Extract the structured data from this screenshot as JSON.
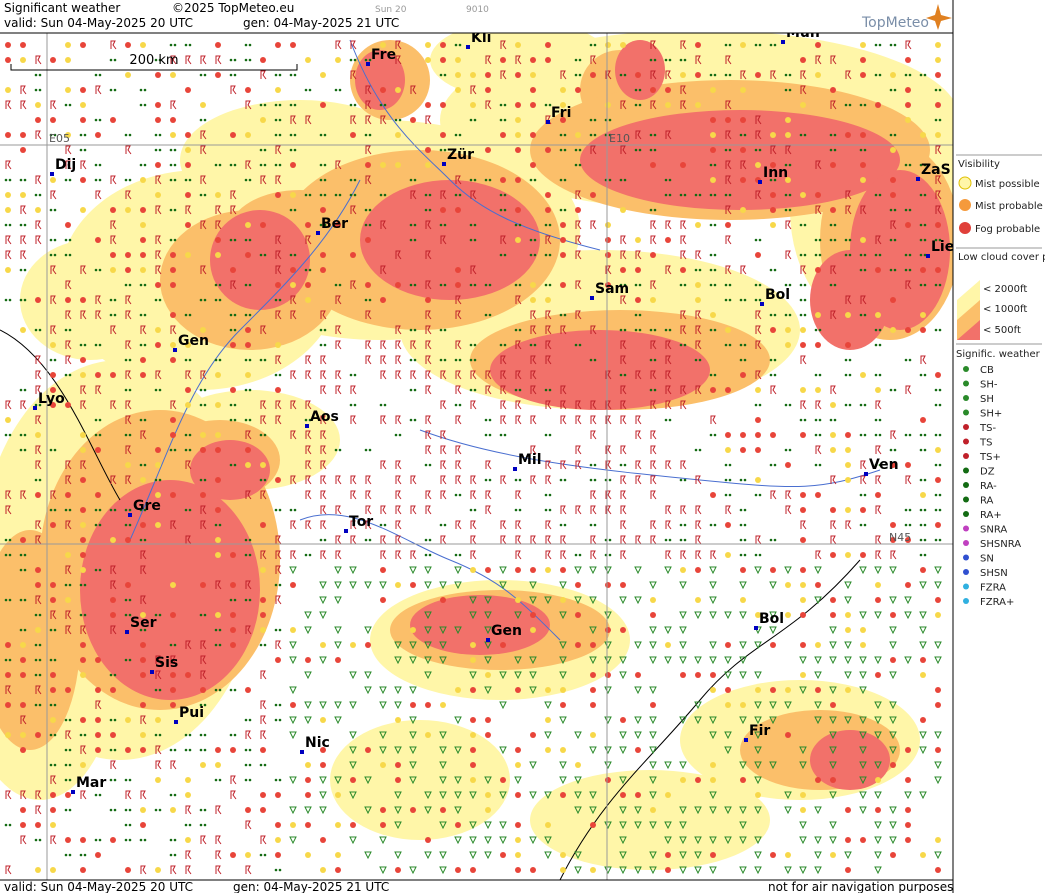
{
  "header": {
    "title": "Significant weather",
    "copyright": "©2025 TopMeteo.eu",
    "faint_left": "Sun 20",
    "faint_right": "9010",
    "valid": "valid:  Sun  04-May-2025  20 UTC",
    "gen": "gen: 04-May-2025 21 UTC",
    "brand": "TopMeteo"
  },
  "map": {
    "scale": "200 km",
    "grid_labels": [
      "E05",
      "E10",
      "N45"
    ],
    "cities": [
      "Kli",
      "Mün",
      "Fre",
      "Fri",
      "Dij",
      "Zür",
      "Inn",
      "ZaS",
      "Ber",
      "Lie",
      "Sam",
      "Bol",
      "Gen",
      "Lyo",
      "Aos",
      "Mil",
      "Ven",
      "Gre",
      "Tor",
      "Ser",
      "Gen",
      "Bol",
      "Sis",
      "Pui",
      "Nic",
      "Fir",
      "Mar"
    ]
  },
  "legend": {
    "visibility": {
      "title": "Visibility",
      "items": [
        "Mist possible",
        "Mist probable",
        "Fog probable"
      ]
    },
    "low_cloud": {
      "title": "Low cloud cover probable",
      "items": [
        "< 2000ft",
        "< 1000ft",
        "<  500ft"
      ]
    },
    "weather": {
      "title": "Signific. weather",
      "items": [
        "CB",
        "SH-",
        "SH",
        "SH+",
        "TS-",
        "TS",
        "TS+",
        "DZ",
        "RA-",
        "RA",
        "RA+",
        "SNRA",
        "SHSNRA",
        "SN",
        "SHSN",
        "FZRA",
        "FZRA+"
      ]
    }
  },
  "footer": {
    "valid": "valid:  Sun  04-May-2025  20 UTC",
    "gen": "gen: 04-May-2025 21 UTC",
    "note": "not for air navigation purposes"
  }
}
